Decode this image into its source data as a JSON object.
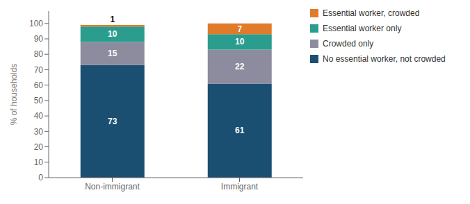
{
  "chart_data": {
    "type": "bar",
    "stacked": true,
    "categories": [
      "Non-immigrant",
      "Immigrant"
    ],
    "series": [
      {
        "name": "No essential worker, not crowded",
        "color": "#1b4f72",
        "values": [
          73,
          61
        ]
      },
      {
        "name": "Crowded only",
        "color": "#8c8c9e",
        "values": [
          15,
          22
        ]
      },
      {
        "name": "Essential worker only",
        "color": "#2a9d8f",
        "values": [
          10,
          10
        ]
      },
      {
        "name": "Essential worker, crowded",
        "color": "#e07b2a",
        "values": [
          1,
          7
        ]
      }
    ],
    "ylabel": "% of households",
    "ylim": [
      0,
      108
    ],
    "yticks": [
      0,
      10,
      20,
      30,
      40,
      50,
      60,
      70,
      80,
      90,
      100
    ],
    "data_labels": true,
    "legend": "right",
    "grid": false
  }
}
